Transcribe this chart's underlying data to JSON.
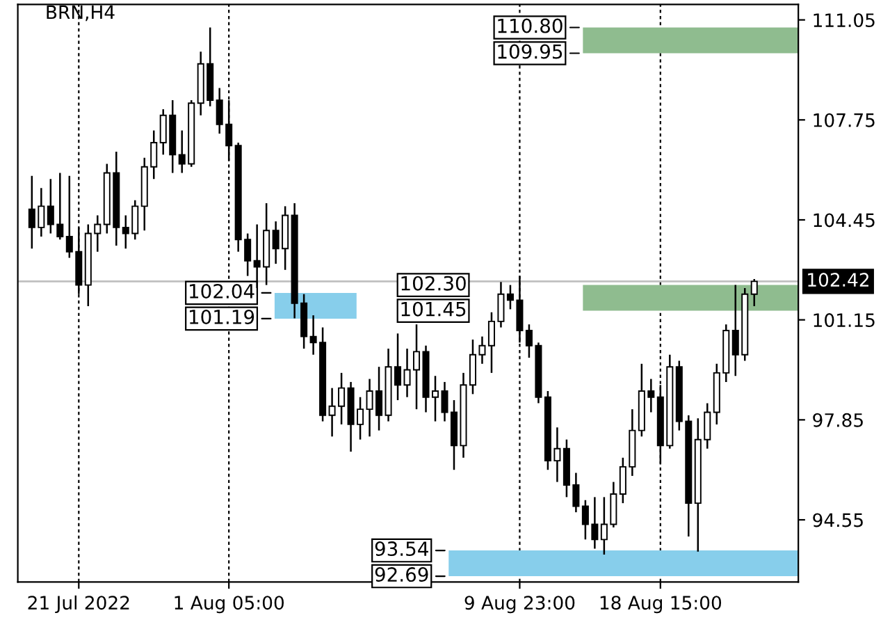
{
  "chart_data": {
    "type": "candlestick",
    "title": "BRN,H4",
    "categories": [
      null,
      null,
      null,
      null,
      null,
      "21 Jul 2022",
      null,
      null,
      null,
      null,
      null,
      null,
      null,
      null,
      null,
      null,
      null,
      null,
      null,
      null,
      null,
      "1 Aug 05:00",
      null,
      null,
      null,
      null,
      null,
      null,
      null,
      null,
      null,
      null,
      null,
      null,
      null,
      null,
      null,
      null,
      null,
      null,
      null,
      null,
      null,
      null,
      null,
      null,
      null,
      null,
      null,
      null,
      null,
      null,
      "9 Aug 23:00",
      null,
      null,
      null,
      null,
      null,
      null,
      null,
      null,
      null,
      null,
      null,
      null,
      null,
      null,
      "18 Aug 15:00",
      null,
      null,
      null,
      null,
      null,
      null,
      null,
      null,
      null,
      null
    ],
    "ohlc": [
      [
        104.8,
        105.9,
        103.5,
        104.2
      ],
      [
        104.2,
        105.5,
        103.9,
        104.9
      ],
      [
        104.9,
        105.8,
        104.0,
        104.3
      ],
      [
        104.3,
        106.0,
        103.8,
        103.9
      ],
      [
        103.9,
        105.9,
        103.2,
        103.4
      ],
      [
        103.4,
        104.2,
        102.0,
        102.3
      ],
      [
        102.3,
        104.3,
        101.6,
        104.0
      ],
      [
        104.0,
        104.6,
        103.4,
        104.3
      ],
      [
        104.3,
        106.3,
        104.0,
        106.0
      ],
      [
        106.0,
        106.7,
        103.6,
        104.2
      ],
      [
        104.2,
        104.6,
        103.5,
        104.0
      ],
      [
        104.0,
        105.1,
        103.8,
        104.9
      ],
      [
        104.9,
        106.5,
        104.1,
        106.2
      ],
      [
        106.2,
        107.4,
        105.8,
        107.0
      ],
      [
        107.0,
        108.1,
        106.6,
        107.9
      ],
      [
        107.9,
        108.4,
        106.0,
        106.6
      ],
      [
        106.6,
        107.4,
        106.0,
        106.3
      ],
      [
        106.3,
        108.4,
        106.2,
        108.3
      ],
      [
        108.3,
        110.0,
        107.9,
        109.6
      ],
      [
        109.6,
        110.8,
        108.2,
        108.4
      ],
      [
        108.4,
        108.8,
        107.3,
        107.6
      ],
      [
        107.6,
        108.4,
        106.4,
        106.9
      ],
      [
        106.9,
        107.0,
        103.4,
        103.8
      ],
      [
        103.8,
        104.0,
        102.6,
        103.1
      ],
      [
        103.1,
        104.3,
        102.2,
        102.9
      ],
      [
        102.9,
        105.0,
        102.3,
        104.1
      ],
      [
        104.1,
        104.4,
        103.0,
        103.5
      ],
      [
        103.5,
        104.9,
        102.8,
        104.6
      ],
      [
        104.6,
        105.0,
        101.2,
        101.7
      ],
      [
        101.7,
        102.0,
        100.2,
        100.6
      ],
      [
        100.6,
        101.3,
        100.0,
        100.4
      ],
      [
        100.4,
        100.9,
        97.8,
        98.0
      ],
      [
        98.0,
        98.9,
        97.3,
        98.3
      ],
      [
        98.3,
        99.4,
        97.7,
        98.9
      ],
      [
        98.9,
        99.1,
        96.8,
        97.7
      ],
      [
        97.7,
        98.6,
        97.2,
        98.2
      ],
      [
        98.2,
        99.2,
        97.3,
        98.8
      ],
      [
        98.8,
        99.6,
        97.5,
        98.0
      ],
      [
        98.0,
        100.2,
        97.8,
        99.6
      ],
      [
        99.6,
        100.7,
        98.5,
        99.0
      ],
      [
        99.0,
        100.2,
        98.6,
        99.5
      ],
      [
        99.5,
        101.0,
        98.2,
        100.1
      ],
      [
        100.1,
        100.3,
        98.1,
        98.6
      ],
      [
        98.6,
        99.3,
        97.8,
        98.8
      ],
      [
        98.8,
        99.1,
        97.8,
        98.1
      ],
      [
        98.1,
        98.5,
        96.2,
        97.0
      ],
      [
        97.0,
        99.4,
        96.6,
        99.0
      ],
      [
        99.0,
        100.5,
        98.7,
        100.0
      ],
      [
        100.0,
        100.6,
        99.7,
        100.3
      ],
      [
        100.3,
        101.4,
        99.4,
        101.1
      ],
      [
        101.1,
        102.4,
        100.9,
        102.0
      ],
      [
        102.0,
        102.3,
        101.5,
        101.8
      ],
      [
        101.8,
        102.6,
        100.4,
        100.8
      ],
      [
        100.8,
        101.0,
        99.9,
        100.3
      ],
      [
        100.3,
        100.4,
        98.4,
        98.6
      ],
      [
        98.6,
        98.8,
        96.2,
        96.5
      ],
      [
        96.5,
        97.6,
        95.8,
        96.9
      ],
      [
        96.9,
        97.2,
        95.3,
        95.7
      ],
      [
        95.7,
        96.1,
        94.8,
        95.0
      ],
      [
        95.0,
        95.2,
        93.9,
        94.4
      ],
      [
        94.4,
        95.3,
        93.6,
        93.9
      ],
      [
        93.9,
        95.3,
        93.4,
        94.4
      ],
      [
        94.4,
        95.8,
        94.3,
        95.4
      ],
      [
        95.4,
        96.6,
        95.1,
        96.3
      ],
      [
        96.3,
        98.2,
        96.0,
        97.5
      ],
      [
        97.5,
        99.7,
        97.3,
        98.8
      ],
      [
        98.8,
        99.2,
        98.1,
        98.6
      ],
      [
        98.6,
        99.0,
        96.4,
        97.0
      ],
      [
        97.0,
        100.0,
        96.9,
        99.6
      ],
      [
        99.6,
        99.8,
        97.5,
        97.8
      ],
      [
        97.8,
        98.0,
        94.0,
        95.1
      ],
      [
        95.1,
        97.9,
        93.5,
        97.2
      ],
      [
        97.2,
        98.4,
        96.9,
        98.1
      ],
      [
        98.1,
        99.7,
        97.7,
        99.4
      ],
      [
        99.4,
        101.0,
        99.1,
        100.8
      ],
      [
        100.8,
        102.3,
        99.3,
        100.0
      ],
      [
        100.0,
        102.2,
        99.8,
        102.0
      ],
      [
        102.0,
        102.5,
        101.6,
        102.42
      ]
    ],
    "ylim": [
      92.5,
      111.56
    ],
    "yticks": [
      94.55,
      97.85,
      101.15,
      104.45,
      107.75,
      111.05
    ],
    "grid": "x",
    "ref_lines": [
      {
        "axis": "y",
        "value": 102.42,
        "label": "102.42",
        "color": "#c0c0c0"
      }
    ],
    "bands": [
      {
        "axis": "y",
        "from": 109.95,
        "to": 110.8,
        "color": "#8fbc8f"
      },
      {
        "axis": "y",
        "from": 101.19,
        "to": 102.04,
        "color": "#87ceeb"
      },
      {
        "axis": "y",
        "from": 101.45,
        "to": 102.3,
        "color": "#8fbc8f"
      },
      {
        "axis": "y",
        "from": 92.69,
        "to": 93.54,
        "color": "#87ceeb"
      }
    ],
    "annotations": [
      "110.80",
      "109.95",
      "102.04",
      "101.19",
      "102.30",
      "101.45",
      "93.54",
      "92.69"
    ]
  }
}
